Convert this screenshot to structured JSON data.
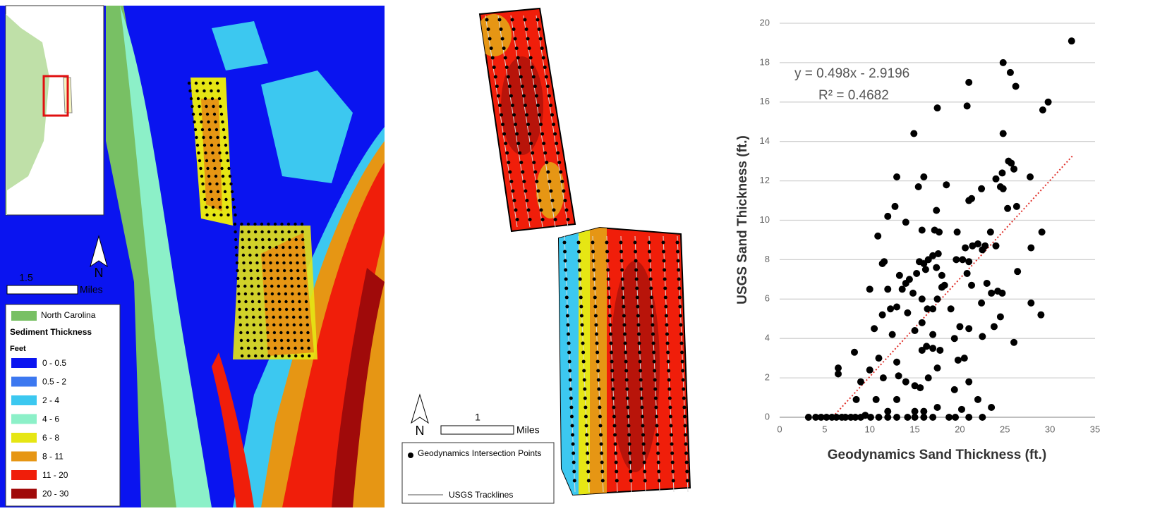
{
  "map_left": {
    "legend": {
      "region": "North Carolina",
      "title": "Sediment Thickness",
      "unit": "Feet",
      "classes": [
        {
          "label": "0 - 0.5",
          "color": "#0a14f0"
        },
        {
          "label": "0.5 - 2",
          "color": "#3c78f0"
        },
        {
          "label": "2 - 4",
          "color": "#3cc8f0"
        },
        {
          "label": "4 - 6",
          "color": "#8cf0c8"
        },
        {
          "label": "6 - 8",
          "color": "#e6e614"
        },
        {
          "label": "8 - 11",
          "color": "#e69614"
        },
        {
          "label": "11 - 20",
          "color": "#f01e0a"
        },
        {
          "label": "20 - 30",
          "color": "#a00a0a"
        }
      ]
    },
    "scale_label": "1.5",
    "scale_unit": "Miles",
    "north": "N"
  },
  "map_middle": {
    "scale_label": "1",
    "scale_unit": "Miles",
    "north": "N",
    "legend": {
      "points": "Geodynamics Intersection Points",
      "lines": "USGS Tracklines"
    }
  },
  "chart_data": {
    "type": "scatter",
    "color": "#000000",
    "x_label": "Geodynamics Sand Thickness (ft.)",
    "y_label": "USGS Sand Thickness (ft.)",
    "xlim": [
      0,
      35
    ],
    "xticks": [
      0,
      5,
      10,
      15,
      20,
      25,
      30,
      35
    ],
    "ylim": [
      0,
      20
    ],
    "yticks": [
      0,
      2,
      4,
      6,
      8,
      10,
      12,
      14,
      16,
      18,
      20
    ],
    "grid": true,
    "trendline": {
      "equation": "y = 0.498x - 2.9196",
      "r2": "R² = 0.4682",
      "slope": 0.498,
      "intercept": -2.9196,
      "x": [
        5.9,
        32.5
      ],
      "color": "#e0302a"
    },
    "x": [
      32.4,
      24.8,
      25.6,
      26.2,
      21.0,
      29.8,
      29.2,
      17.5,
      20.8,
      14.9,
      24.8,
      25.4,
      26.0,
      25.7,
      24.7,
      27.8,
      24.0,
      16.0,
      22.4,
      18.5,
      13.0,
      15.4,
      21.0,
      21.3,
      24.5,
      24.8,
      25.3,
      26.3,
      17.4,
      12.0,
      12.8,
      10.9,
      14.0,
      15.8,
      17.2,
      17.7,
      19.7,
      23.4,
      29.1,
      20.6,
      21.4,
      22.0,
      22.8,
      24.0,
      22.5,
      27.9,
      11.4,
      11.6,
      15.5,
      16.0,
      16.5,
      17.0,
      17.6,
      19.6,
      20.3,
      21.0,
      13.3,
      14.0,
      14.4,
      15.2,
      16.2,
      17.4,
      18.0,
      18.3,
      20.8,
      26.4,
      10.0,
      12.0,
      13.6,
      14.8,
      15.8,
      17.5,
      18.0,
      21.3,
      23.0,
      23.5,
      24.2,
      24.7,
      12.3,
      11.4,
      13.0,
      14.2,
      16.4,
      17.0,
      19.0,
      22.4,
      27.9,
      29.0,
      10.5,
      12.5,
      15.0,
      15.8,
      17.0,
      19.4,
      20.0,
      21.0,
      23.8,
      24.5,
      26.0,
      11.0,
      13.0,
      15.8,
      16.3,
      17.0,
      17.8,
      19.8,
      20.5,
      22.5,
      9.0,
      8.3,
      6.5,
      6.5,
      10.0,
      11.5,
      13.2,
      14.0,
      15.0,
      15.6,
      16.5,
      17.5,
      21.0,
      19.4,
      20.2,
      22.0,
      23.5,
      8.5,
      10.7,
      13.0,
      15.0,
      16.0,
      17.5,
      12.0,
      3.2,
      4.0,
      4.6,
      5.2,
      5.8,
      6.3,
      6.9,
      7.3,
      7.9,
      8.4,
      9.0,
      10.1,
      11.0,
      12.0,
      13.0,
      14.2,
      15.0,
      18.8,
      19.5,
      21.0,
      22.5,
      16.0,
      17.0,
      9.5
    ],
    "values": [
      19.1,
      18.0,
      17.5,
      16.8,
      17.0,
      16.0,
      15.6,
      15.7,
      15.8,
      14.4,
      14.4,
      13.0,
      12.6,
      12.9,
      12.4,
      12.2,
      12.1,
      12.2,
      11.6,
      11.8,
      12.2,
      11.7,
      11.0,
      11.1,
      11.7,
      11.6,
      10.6,
      10.7,
      10.5,
      10.2,
      10.7,
      9.2,
      9.9,
      9.5,
      9.5,
      9.4,
      9.4,
      9.4,
      9.4,
      8.6,
      8.7,
      8.8,
      8.7,
      8.7,
      8.5,
      8.6,
      7.8,
      7.9,
      7.9,
      7.8,
      8.0,
      8.2,
      8.3,
      8.0,
      8.0,
      7.9,
      7.2,
      6.8,
      7.0,
      7.3,
      7.5,
      7.6,
      7.2,
      6.7,
      7.3,
      7.4,
      6.5,
      6.5,
      6.5,
      6.3,
      6.0,
      6.0,
      6.6,
      6.7,
      6.8,
      6.3,
      6.4,
      6.3,
      5.5,
      5.2,
      5.6,
      5.3,
      5.5,
      5.5,
      5.5,
      5.8,
      5.8,
      5.2,
      4.5,
      4.2,
      4.4,
      4.8,
      4.2,
      4.0,
      4.6,
      4.5,
      4.6,
      5.1,
      3.8,
      3.0,
      2.8,
      3.4,
      3.6,
      3.5,
      3.4,
      2.9,
      3.0,
      4.1,
      1.8,
      3.3,
      2.5,
      2.2,
      2.4,
      2.0,
      2.1,
      1.8,
      1.6,
      1.5,
      2.0,
      2.5,
      1.8,
      1.4,
      0.4,
      0.9,
      0.5,
      0.9,
      0.9,
      0.9,
      0.3,
      0.3,
      0.5,
      0.3,
      0,
      0,
      0,
      0,
      0,
      0,
      0,
      0,
      0,
      0,
      0,
      0,
      0,
      0,
      0,
      0,
      0,
      0,
      0,
      0,
      0,
      0,
      0,
      0.1
    ]
  }
}
